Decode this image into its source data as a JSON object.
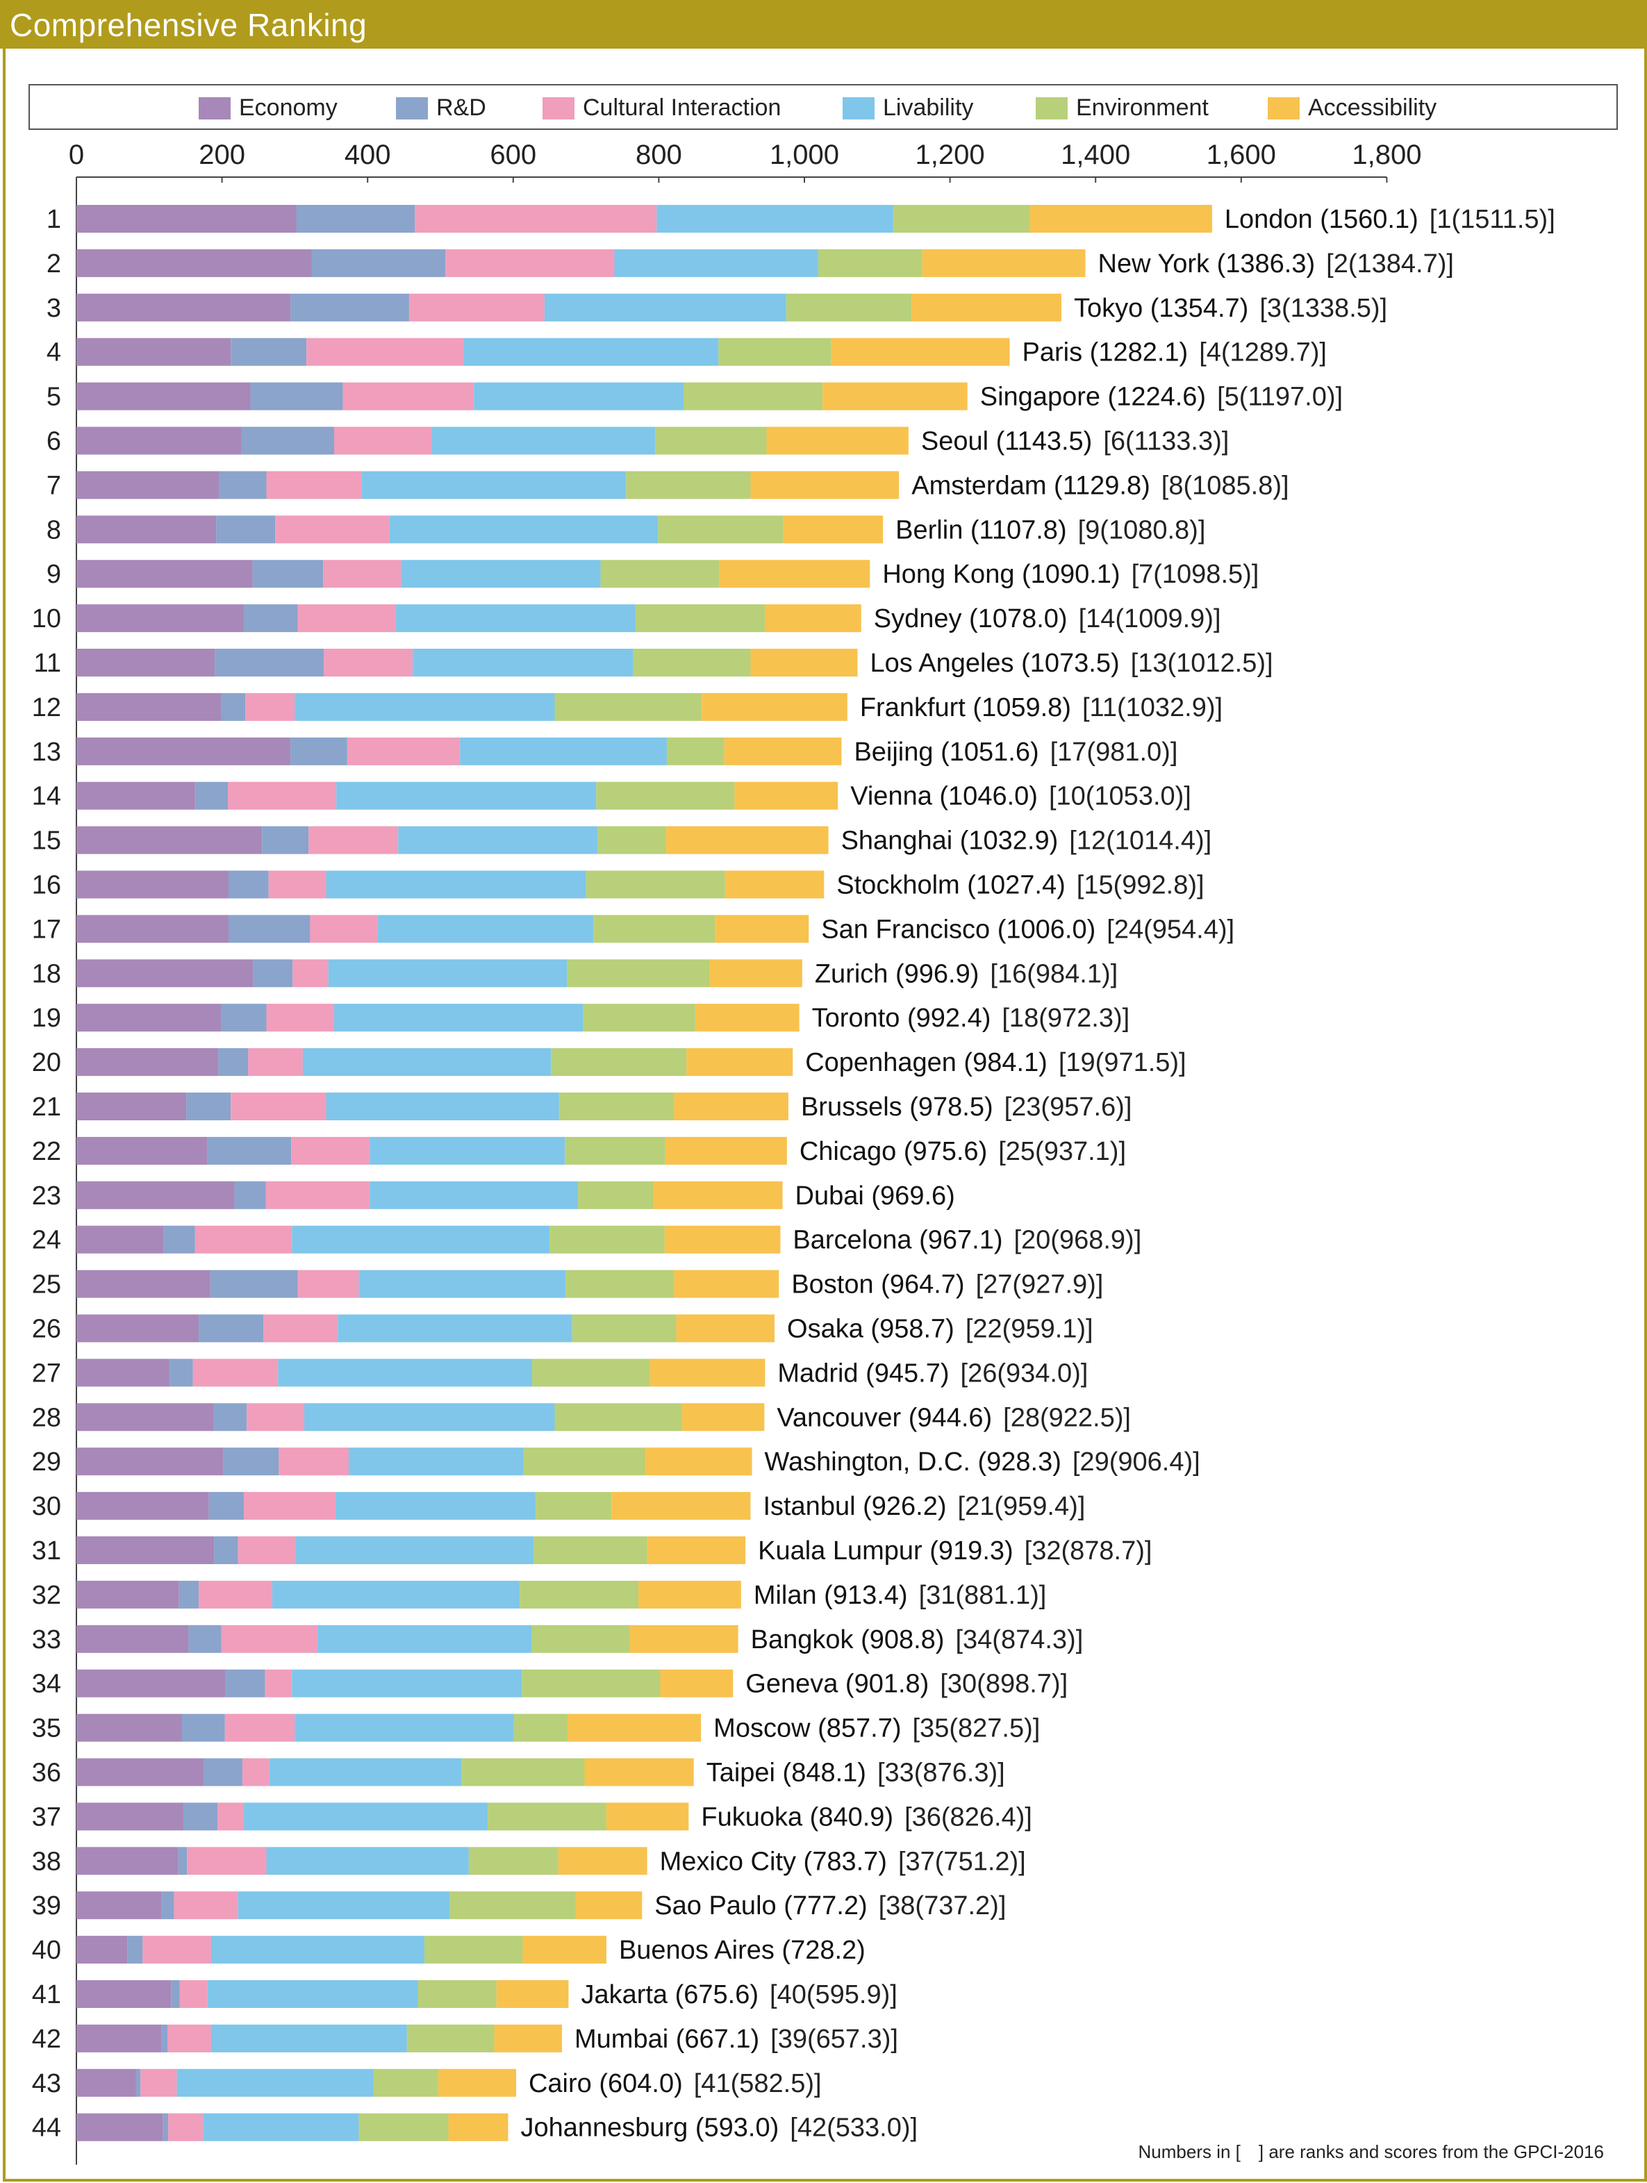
{
  "header": {
    "title": "Comprehensive Ranking"
  },
  "colors": {
    "economy": "#a888b8",
    "rd": "#8aa4cc",
    "cultural": "#f09ebb",
    "livability": "#7fc6ea",
    "environment": "#b8d079",
    "accessibility": "#f8c24e",
    "frame": "#b09b1c"
  },
  "footnote": "Numbers in [　] are ranks and scores from the GPCI-2016",
  "chart_data": {
    "type": "bar",
    "orientation": "horizontal",
    "stacked": true,
    "title": "Comprehensive Ranking",
    "xlim": [
      0,
      1800
    ],
    "xticks": [
      "0",
      "200",
      "400",
      "600",
      "800",
      "1,000",
      "1,200",
      "1,400",
      "1,600",
      "1,800"
    ],
    "xtick_values": [
      0,
      200,
      400,
      600,
      800,
      1000,
      1200,
      1400,
      1600,
      1800
    ],
    "legend": {
      "position": "top",
      "entries": [
        "Economy",
        "R&D",
        "Cultural Interaction",
        "Livability",
        "Environment",
        "Accessibility"
      ]
    },
    "rows": [
      {
        "rank": "1",
        "label": "London (1560.1)",
        "prev": "[1(1511.5)]",
        "values": [
          302,
          163,
          332,
          325,
          188,
          250
        ]
      },
      {
        "rank": "2",
        "label": "New York (1386.3)",
        "prev": "[2(1384.7)]",
        "values": [
          323,
          184,
          232,
          280,
          143,
          224
        ]
      },
      {
        "rank": "3",
        "label": "Tokyo (1354.7)",
        "prev": "[3(1338.5)]",
        "values": [
          294,
          163,
          186,
          332,
          172,
          206
        ]
      },
      {
        "rank": "4",
        "label": "Paris (1282.1)",
        "prev": "[4(1289.7)]",
        "values": [
          212,
          104,
          216,
          350,
          155,
          245
        ]
      },
      {
        "rank": "5",
        "label": "Singapore (1224.6)",
        "prev": "[5(1197.0)]",
        "values": [
          239,
          127,
          180,
          288,
          191,
          199
        ]
      },
      {
        "rank": "6",
        "label": "Seoul (1143.5)",
        "prev": "[6(1133.3)]",
        "values": [
          227,
          127,
          134,
          307,
          153,
          195
        ]
      },
      {
        "rank": "7",
        "label": "Amsterdam (1129.8)",
        "prev": "[8(1085.8)]",
        "values": [
          196,
          65,
          131,
          363,
          171,
          204
        ]
      },
      {
        "rank": "8",
        "label": "Berlin (1107.8)",
        "prev": "[9(1080.8)]",
        "values": [
          192,
          81,
          157,
          369,
          172,
          137
        ]
      },
      {
        "rank": "9",
        "label": "Hong Kong (1090.1)",
        "prev": "[7(1098.5)]",
        "values": [
          242,
          97,
          107,
          274,
          163,
          207
        ]
      },
      {
        "rank": "10",
        "label": "Sydney (1078.0)",
        "prev": "[14(1009.9)]",
        "values": [
          230,
          74,
          135,
          329,
          178,
          132
        ]
      },
      {
        "rank": "11",
        "label": "Los Angeles (1073.5)",
        "prev": "[13(1012.5)]",
        "values": [
          190,
          150,
          122,
          303,
          161,
          147
        ]
      },
      {
        "rank": "12",
        "label": "Frankfurt (1059.8)",
        "prev": "[11(1032.9)]",
        "values": [
          199,
          33,
          68,
          357,
          202,
          200
        ]
      },
      {
        "rank": "13",
        "label": "Beijing (1051.6)",
        "prev": "[17(981.0)]",
        "values": [
          294,
          78,
          155,
          284,
          79,
          161
        ]
      },
      {
        "rank": "14",
        "label": "Vienna (1046.0)",
        "prev": "[10(1053.0)]",
        "values": [
          163,
          45,
          149,
          357,
          190,
          142
        ]
      },
      {
        "rank": "15",
        "label": "Shanghai (1032.9)",
        "prev": "[12(1014.4)]",
        "values": [
          255,
          64,
          123,
          274,
          94,
          223
        ]
      },
      {
        "rank": "16",
        "label": "Stockholm (1027.4)",
        "prev": "[15(992.8)]",
        "values": [
          209,
          55,
          79,
          357,
          191,
          136
        ]
      },
      {
        "rank": "17",
        "label": "San Francisco (1006.0)",
        "prev": "[24(954.4)]",
        "values": [
          209,
          112,
          93,
          296,
          167,
          129
        ]
      },
      {
        "rank": "18",
        "label": "Zurich (996.9)",
        "prev": "[16(984.1)]",
        "values": [
          243,
          54,
          49,
          328,
          196,
          127
        ]
      },
      {
        "rank": "19",
        "label": "Toronto (992.4)",
        "prev": "[18(972.3)]",
        "values": [
          199,
          62,
          93,
          342,
          154,
          143
        ]
      },
      {
        "rank": "20",
        "label": "Copenhagen (984.1)",
        "prev": "[19(971.5)]",
        "values": [
          195,
          41,
          75,
          341,
          186,
          146
        ]
      },
      {
        "rank": "21",
        "label": "Brussels (978.5)",
        "prev": "[23(957.6)]",
        "values": [
          151,
          61,
          131,
          320,
          158,
          157
        ]
      },
      {
        "rank": "22",
        "label": "Chicago (975.6)",
        "prev": "[25(937.1)]",
        "values": [
          180,
          115,
          108,
          268,
          138,
          167
        ]
      },
      {
        "rank": "23",
        "label": "Dubai (969.6)",
        "prev": "",
        "values": [
          217,
          43,
          143,
          286,
          103,
          178
        ]
      },
      {
        "rank": "24",
        "label": "Barcelona (967.1)",
        "prev": "[20(968.9)]",
        "values": [
          120,
          43,
          133,
          354,
          158,
          159
        ]
      },
      {
        "rank": "25",
        "label": "Boston (964.7)",
        "prev": "[27(927.9)]",
        "values": [
          184,
          120,
          84,
          284,
          149,
          144
        ]
      },
      {
        "rank": "26",
        "label": "Osaka (958.7)",
        "prev": "[22(959.1)]",
        "values": [
          168,
          89,
          102,
          322,
          143,
          135
        ]
      },
      {
        "rank": "27",
        "label": "Madrid (945.7)",
        "prev": "[26(934.0)]",
        "values": [
          128,
          32,
          117,
          349,
          162,
          158
        ]
      },
      {
        "rank": "28",
        "label": "Vancouver (944.6)",
        "prev": "[28(922.5)]",
        "values": [
          188,
          46,
          79,
          344,
          175,
          113
        ]
      },
      {
        "rank": "29",
        "label": "Washington, D.C. (928.3)",
        "prev": "[29(906.4)]",
        "values": [
          202,
          76,
          96,
          240,
          167,
          147
        ]
      },
      {
        "rank": "30",
        "label": "Istanbul (926.2)",
        "prev": "[21(959.4)]",
        "values": [
          182,
          48,
          126,
          275,
          104,
          191
        ]
      },
      {
        "rank": "31",
        "label": "Kuala Lumpur (919.3)",
        "prev": "[32(878.7)]",
        "values": [
          189,
          33,
          79,
          327,
          156,
          135
        ]
      },
      {
        "rank": "32",
        "label": "Milan (913.4)",
        "prev": "[31(881.1)]",
        "values": [
          141,
          27,
          101,
          340,
          163,
          141
        ]
      },
      {
        "rank": "33",
        "label": "Bangkok (908.8)",
        "prev": "[34(874.3)]",
        "values": [
          154,
          45,
          132,
          294,
          135,
          149
        ]
      },
      {
        "rank": "34",
        "label": "Geneva (901.8)",
        "prev": "[30(898.7)]",
        "values": [
          205,
          54,
          37,
          316,
          190,
          100
        ]
      },
      {
        "rank": "35",
        "label": "Moscow (857.7)",
        "prev": "[35(827.5)]",
        "values": [
          145,
          59,
          96,
          301,
          74,
          183
        ]
      },
      {
        "rank": "36",
        "label": "Taipei (848.1)",
        "prev": "[33(876.3)]",
        "values": [
          175,
          53,
          37,
          264,
          169,
          150
        ]
      },
      {
        "rank": "37",
        "label": "Fukuoka (840.9)",
        "prev": "[36(826.4)]",
        "values": [
          147,
          47,
          36,
          335,
          163,
          113
        ]
      },
      {
        "rank": "38",
        "label": "Mexico City (783.7)",
        "prev": "[37(751.2)]",
        "values": [
          140,
          12,
          109,
          278,
          123,
          122
        ]
      },
      {
        "rank": "39",
        "label": "Sao Paulo (777.2)",
        "prev": "[38(737.2)]",
        "values": [
          117,
          17,
          88,
          291,
          173,
          91
        ]
      },
      {
        "rank": "40",
        "label": "Buenos Aires (728.2)",
        "prev": "",
        "values": [
          70,
          21,
          94,
          293,
          135,
          115
        ]
      },
      {
        "rank": "41",
        "label": "Jakarta (675.6)",
        "prev": "[40(595.9)]",
        "values": [
          130,
          12,
          38,
          289,
          108,
          99
        ]
      },
      {
        "rank": "42",
        "label": "Mumbai (667.1)",
        "prev": "[39(657.3)]",
        "values": [
          117,
          8,
          60,
          269,
          120,
          93
        ]
      },
      {
        "rank": "43",
        "label": "Cairo (604.0)",
        "prev": "[41(582.5)]",
        "values": [
          82,
          6,
          50,
          270,
          89,
          107
        ]
      },
      {
        "rank": "44",
        "label": "Johannesburg (593.0)",
        "prev": "[42(533.0)]",
        "values": [
          119,
          7,
          48,
          214,
          123,
          82
        ]
      }
    ]
  }
}
